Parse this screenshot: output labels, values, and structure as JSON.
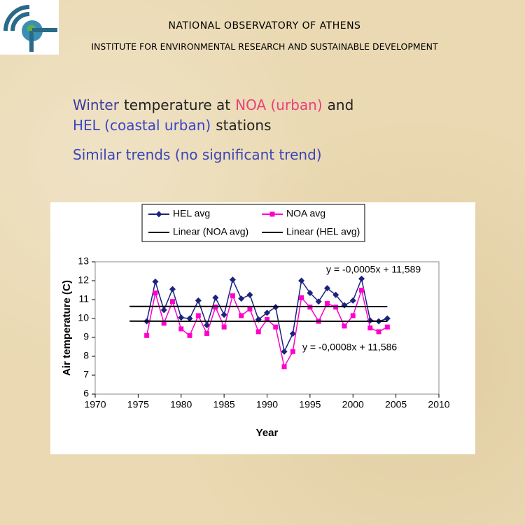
{
  "header": {
    "title": "NATIONAL OBSERVATORY OF ATHENS",
    "subtitle": "INSTITUTE FOR ENVIRONMENTAL RESEARCH AND SUSTAINABLE DEVELOPMENT"
  },
  "slide": {
    "heading": [
      [
        {
          "text": "Winter",
          "color": "#3a3aa0"
        },
        {
          "text": "temperature at",
          "color": "#222222"
        },
        {
          "text": "NOA (urban)",
          "color": "#e8407a"
        },
        {
          "text": "and",
          "color": "#222222"
        }
      ],
      [
        {
          "text": "HEL (coastal urban)",
          "color": "#3a45c8"
        },
        {
          "text": "stations",
          "color": "#222222"
        }
      ]
    ],
    "bullet": "Similar trends (no significant trend)"
  },
  "chart_data": {
    "type": "line",
    "x_label": "Year",
    "y_label": "Air temperature (C)",
    "x": [
      1976,
      1977,
      1978,
      1979,
      1980,
      1981,
      1982,
      1983,
      1984,
      1985,
      1986,
      1987,
      1988,
      1989,
      1990,
      1991,
      1992,
      1993,
      1994,
      1995,
      1996,
      1997,
      1998,
      1999,
      2000,
      2001,
      2002,
      2003,
      2004
    ],
    "series": [
      {
        "name": "HEL avg",
        "color": "#1a237e",
        "marker": "diamond",
        "values": [
          9.85,
          11.95,
          10.45,
          11.55,
          10.05,
          10.0,
          10.95,
          9.65,
          11.1,
          10.2,
          12.05,
          11.05,
          11.25,
          9.95,
          10.3,
          10.6,
          8.25,
          9.2,
          12.0,
          11.35,
          10.9,
          11.6,
          11.25,
          10.7,
          10.95,
          12.1,
          9.9,
          9.85,
          10.0
        ]
      },
      {
        "name": "NOA avg",
        "color": "#ff00cc",
        "marker": "square",
        "values": [
          9.1,
          11.35,
          9.75,
          10.9,
          9.45,
          9.1,
          10.15,
          9.2,
          10.6,
          9.55,
          11.2,
          10.15,
          10.5,
          9.3,
          9.95,
          9.55,
          7.45,
          8.25,
          11.1,
          10.6,
          9.85,
          10.8,
          10.6,
          9.6,
          10.15,
          11.5,
          9.5,
          9.3,
          9.55
        ]
      },
      {
        "name": "Linear (NOA avg)",
        "color": "#000000",
        "marker": "none",
        "x": [
          1974,
          2004
        ],
        "values": [
          9.86,
          9.85
        ]
      },
      {
        "name": "Linear (HEL avg)",
        "color": "#000000",
        "marker": "none",
        "x": [
          1974,
          2004
        ],
        "values": [
          10.64,
          10.63
        ]
      }
    ],
    "annotations": [
      "y = -0,0005x + 11,589",
      "y = -0,0008x + 11,586"
    ],
    "xlim": [
      1970,
      2010
    ],
    "xticks": [
      1970,
      1975,
      1980,
      1985,
      1990,
      1995,
      2000,
      2005,
      2010
    ],
    "ylim": [
      6,
      13
    ],
    "yticks": [
      6,
      7,
      8,
      9,
      10,
      11,
      12,
      13
    ],
    "grid": false,
    "legend": "top"
  }
}
